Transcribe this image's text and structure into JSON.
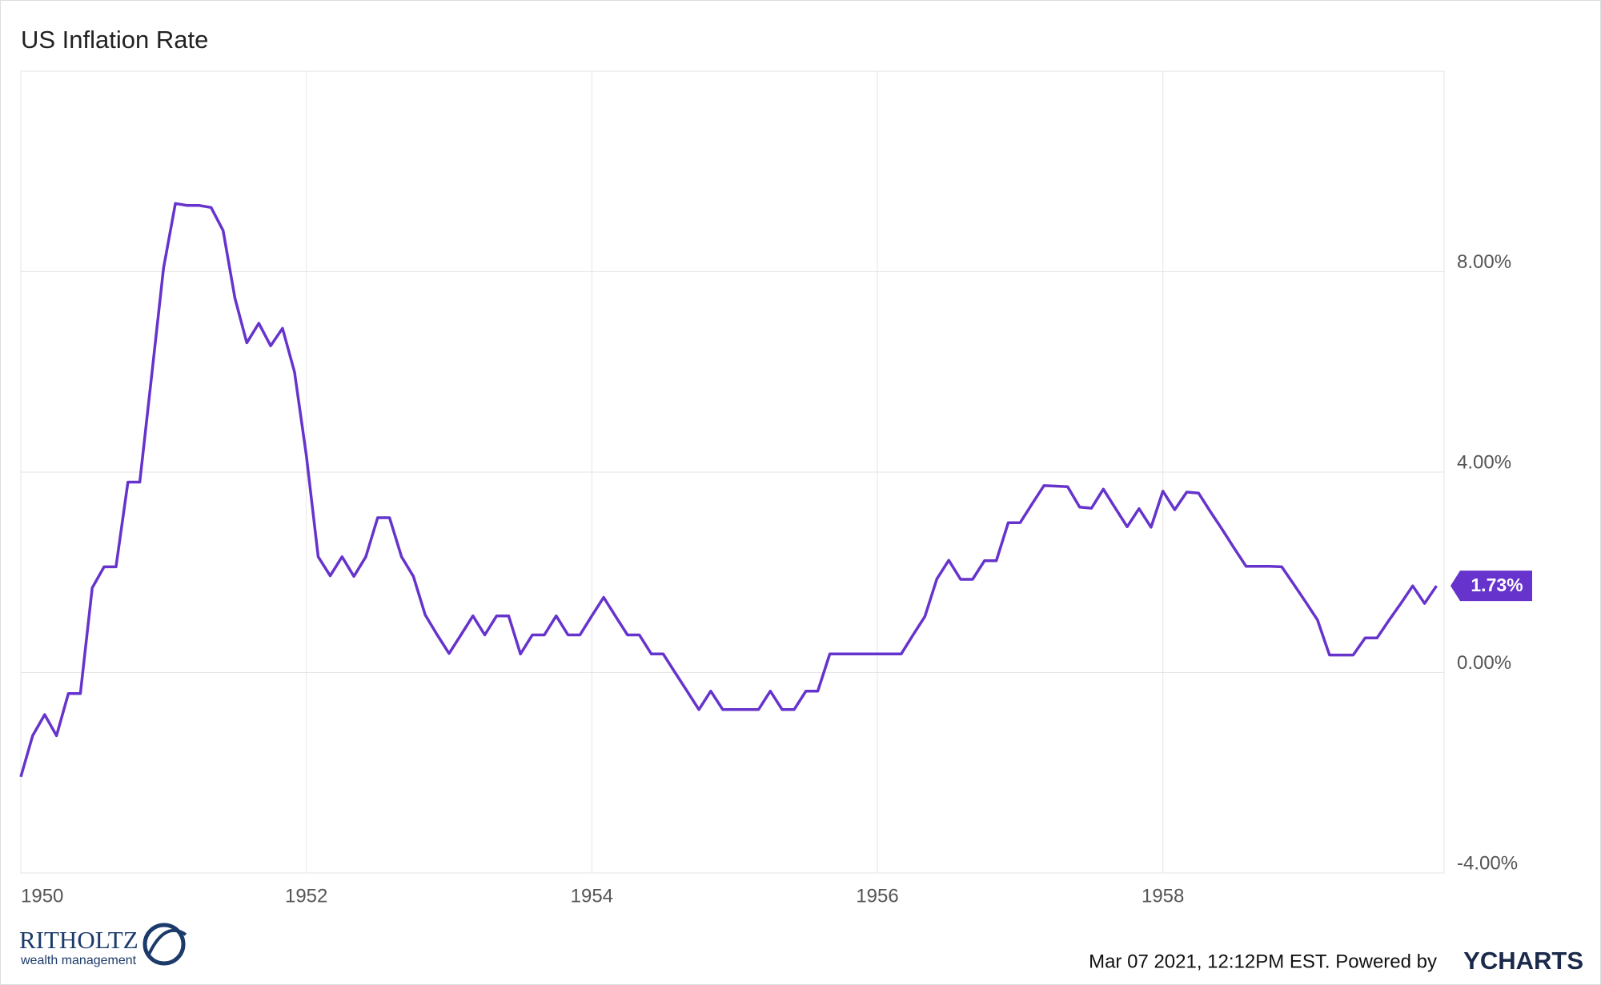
{
  "chart_data": {
    "type": "line",
    "title": "US Inflation Rate",
    "x": [
      1950.0,
      1950.083,
      1950.167,
      1950.25,
      1950.333,
      1950.417,
      1950.5,
      1950.583,
      1950.667,
      1950.75,
      1950.833,
      1950.917,
      1951.0,
      1951.083,
      1951.167,
      1951.25,
      1951.333,
      1951.417,
      1951.5,
      1951.583,
      1951.667,
      1951.75,
      1951.833,
      1951.917,
      1952.0,
      1952.083,
      1952.167,
      1952.25,
      1952.333,
      1952.417,
      1952.5,
      1952.583,
      1952.667,
      1952.75,
      1952.833,
      1952.917,
      1953.0,
      1953.083,
      1953.167,
      1953.25,
      1953.333,
      1953.417,
      1953.5,
      1953.583,
      1953.667,
      1953.75,
      1953.833,
      1953.917,
      1954.0,
      1954.083,
      1954.167,
      1954.25,
      1954.333,
      1954.417,
      1954.5,
      1954.583,
      1954.667,
      1954.75,
      1954.833,
      1954.917,
      1955.0,
      1955.083,
      1955.167,
      1955.25,
      1955.333,
      1955.417,
      1955.5,
      1955.583,
      1955.667,
      1955.75,
      1955.833,
      1955.917,
      1956.0,
      1956.083,
      1956.167,
      1956.25,
      1956.333,
      1956.417,
      1956.5,
      1956.583,
      1956.667,
      1956.75,
      1956.833,
      1956.917,
      1957.0,
      1957.083,
      1957.167,
      1957.25,
      1957.333,
      1957.417,
      1957.5,
      1957.583,
      1957.667,
      1957.75,
      1957.833,
      1957.917,
      1958.0,
      1958.083,
      1958.167,
      1958.25,
      1958.333,
      1958.417,
      1958.5,
      1958.583,
      1958.667,
      1958.75,
      1958.833,
      1958.917,
      1959.0,
      1959.083,
      1959.167,
      1959.25,
      1959.333,
      1959.417,
      1959.5,
      1959.583,
      1959.667,
      1959.75,
      1959.833,
      1959.917
    ],
    "series": [
      {
        "name": "US Inflation Rate",
        "color": "#6633cc",
        "values": [
          -2.08,
          -1.26,
          -0.84,
          -1.26,
          -0.42,
          -0.42,
          1.69,
          2.11,
          2.11,
          3.8,
          3.8,
          5.93,
          8.07,
          9.36,
          9.32,
          9.32,
          9.28,
          8.82,
          7.47,
          6.58,
          6.97,
          6.52,
          6.87,
          6.0,
          4.33,
          2.31,
          1.93,
          2.31,
          1.92,
          2.31,
          3.09,
          3.09,
          2.31,
          1.92,
          1.15,
          0.75,
          0.38,
          0.75,
          1.13,
          0.75,
          1.13,
          1.13,
          0.37,
          0.75,
          0.75,
          1.13,
          0.75,
          0.75,
          1.13,
          1.5,
          1.12,
          0.75,
          0.75,
          0.37,
          0.37,
          0.0,
          -0.37,
          -0.74,
          -0.37,
          -0.74,
          -0.74,
          -0.74,
          -0.74,
          -0.37,
          -0.74,
          -0.74,
          -0.37,
          -0.37,
          0.37,
          0.37,
          0.37,
          0.37,
          0.37,
          0.37,
          0.37,
          0.75,
          1.12,
          1.87,
          2.24,
          1.86,
          1.86,
          2.23,
          2.23,
          2.99,
          2.99,
          3.36,
          3.73,
          3.72,
          3.71,
          3.3,
          3.28,
          3.66,
          3.28,
          2.91,
          3.27,
          2.9,
          3.62,
          3.25,
          3.6,
          3.58,
          3.21,
          2.85,
          2.48,
          2.12,
          2.12,
          2.12,
          2.11,
          1.76,
          1.41,
          1.05,
          0.35,
          0.35,
          0.35,
          0.69,
          0.69,
          1.04,
          1.38,
          1.73,
          1.38,
          1.73
        ],
        "value_labels": [
          null,
          null,
          null,
          null,
          null,
          null,
          null,
          null,
          null,
          null,
          null,
          null,
          null,
          null,
          null,
          null,
          null,
          null,
          null,
          null,
          null,
          null,
          null,
          null,
          null,
          null,
          null,
          null,
          null,
          null,
          null,
          null,
          null,
          null,
          null,
          null,
          null,
          null,
          null,
          null,
          null,
          null,
          null,
          null,
          null,
          null,
          null,
          null,
          null,
          null,
          null,
          null,
          null,
          null,
          null,
          null,
          null,
          null,
          null,
          null,
          null,
          null,
          null,
          null,
          null,
          null,
          null,
          null,
          null,
          null,
          null,
          null,
          null,
          null,
          null,
          null,
          null,
          null,
          null,
          null,
          null,
          null,
          null,
          null,
          null,
          null,
          null,
          null,
          null,
          null,
          null,
          null,
          null,
          null,
          null,
          null,
          null,
          null,
          null,
          null,
          null,
          null,
          null,
          null,
          null,
          null,
          null,
          null,
          null,
          null,
          null,
          null,
          null,
          null,
          null,
          null,
          null,
          null,
          null,
          "1.73%"
        ]
      }
    ],
    "xlim": [
      1950,
      1959.97
    ],
    "xticks": [
      1950,
      1952,
      1954,
      1956,
      1958
    ],
    "ylim": [
      -4,
      12
    ],
    "yticks": [
      {
        "value": -4,
        "label": "-4.00%"
      },
      {
        "value": 0,
        "label": "0.00%"
      },
      {
        "value": 4,
        "label": "4.00%"
      },
      {
        "value": 8,
        "label": "8.00%"
      }
    ],
    "grid": true
  },
  "footer": {
    "brand": "RITHOLTZ",
    "brand_sub": "wealth management",
    "timestamp": "Mar 07 2021, 12:12PM EST. Powered by",
    "source": "YCHARTS"
  }
}
